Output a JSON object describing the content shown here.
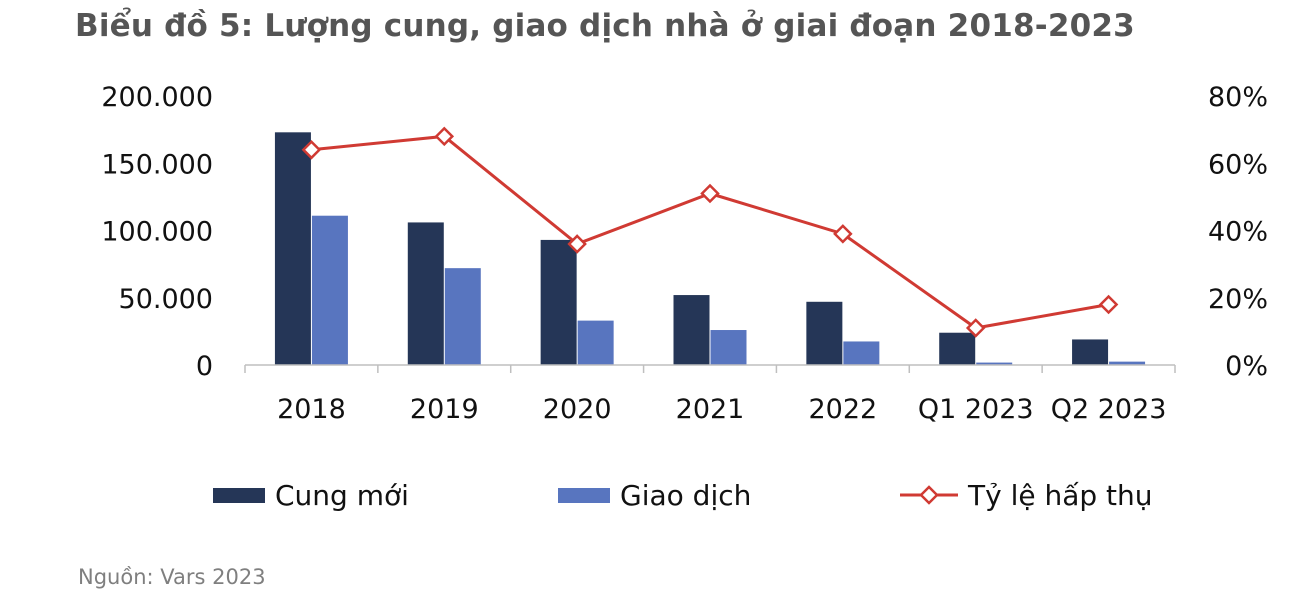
{
  "title": "Biểu đồ 5: Lượng cung, giao dịch nhà ở giai đoạn 2018-2023",
  "source": "Nguồn: Vars 2023",
  "colors": {
    "cung_moi": "#253657",
    "giao_dich": "#5875bf",
    "ty_le": "#d03a33",
    "axis": "#bfbfbf"
  },
  "chart_data": {
    "type": "bar",
    "categories": [
      "2018",
      "2019",
      "2020",
      "2021",
      "2022",
      "Q1 2023",
      "Q2 2023"
    ],
    "series": [
      {
        "name": "Cung mới",
        "type": "bar",
        "axis": "left",
        "values": [
          173000,
          106000,
          93000,
          52000,
          47000,
          24000,
          19000
        ]
      },
      {
        "name": "Giao dịch",
        "type": "bar",
        "axis": "left",
        "values": [
          111000,
          72000,
          33000,
          26000,
          17500,
          1800,
          2500
        ]
      },
      {
        "name": "Tỷ lệ hấp thụ",
        "type": "line",
        "axis": "right",
        "values": [
          64,
          68,
          36,
          51,
          39,
          11,
          18
        ]
      }
    ],
    "y_left": {
      "min": 0,
      "max": 200000,
      "ticks": [
        0,
        50000,
        100000,
        150000,
        200000
      ],
      "tick_labels": [
        "0",
        "50.000",
        "100.000",
        "150.000",
        "200.000"
      ]
    },
    "y_right": {
      "min": 0,
      "max": 80,
      "ticks": [
        0,
        20,
        40,
        60,
        80
      ],
      "tick_labels": [
        "0%",
        "20%",
        "40%",
        "60%",
        "80%"
      ]
    },
    "legend": {
      "position": "bottom",
      "entries": [
        "Cung mới",
        "Giao dịch",
        "Tỷ lệ hấp thụ"
      ]
    },
    "grid": false
  }
}
